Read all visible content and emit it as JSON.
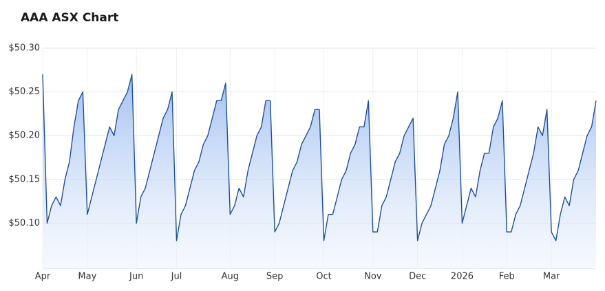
{
  "chart_data": {
    "type": "area",
    "title": "AAA ASX Chart",
    "categories": [
      "Apr",
      null,
      null,
      null,
      null,
      null,
      null,
      null,
      null,
      null,
      "May",
      null,
      null,
      null,
      null,
      null,
      null,
      null,
      null,
      null,
      null,
      "Jun",
      null,
      null,
      null,
      null,
      null,
      null,
      null,
      null,
      "Jul",
      null,
      null,
      null,
      null,
      null,
      null,
      null,
      null,
      null,
      null,
      null,
      "Aug",
      null,
      null,
      null,
      null,
      null,
      null,
      null,
      null,
      null,
      "Sep",
      null,
      null,
      null,
      null,
      null,
      null,
      null,
      null,
      null,
      null,
      "Oct",
      null,
      null,
      null,
      null,
      null,
      null,
      null,
      null,
      null,
      null,
      "Nov",
      null,
      null,
      null,
      null,
      null,
      null,
      null,
      null,
      null,
      "Dec",
      null,
      null,
      null,
      null,
      null,
      null,
      null,
      null,
      null,
      "2026",
      null,
      null,
      null,
      null,
      null,
      null,
      null,
      null,
      null,
      "Feb",
      null,
      null,
      null,
      null,
      null,
      null,
      null,
      null,
      null,
      "Mar",
      null,
      null,
      null,
      null,
      null,
      null,
      null,
      null,
      null,
      null
    ],
    "values": [
      50.27,
      50.1,
      50.12,
      50.13,
      50.12,
      50.15,
      50.17,
      50.21,
      50.24,
      50.25,
      50.11,
      50.13,
      50.15,
      50.17,
      50.19,
      50.21,
      50.2,
      50.23,
      50.24,
      50.25,
      50.27,
      50.1,
      50.13,
      50.14,
      50.16,
      50.18,
      50.2,
      50.22,
      50.23,
      50.25,
      50.08,
      50.11,
      50.12,
      50.14,
      50.16,
      50.17,
      50.19,
      50.2,
      50.22,
      50.24,
      50.24,
      50.26,
      50.11,
      50.12,
      50.14,
      50.13,
      50.16,
      50.18,
      50.2,
      50.21,
      50.24,
      50.24,
      50.09,
      50.1,
      50.12,
      50.14,
      50.16,
      50.17,
      50.19,
      50.2,
      50.21,
      50.23,
      50.23,
      50.08,
      50.11,
      50.11,
      50.13,
      50.15,
      50.16,
      50.18,
      50.19,
      50.21,
      50.21,
      50.24,
      50.09,
      50.09,
      50.12,
      50.13,
      50.15,
      50.17,
      50.18,
      50.2,
      50.21,
      50.22,
      50.08,
      50.1,
      50.11,
      50.12,
      50.14,
      50.16,
      50.19,
      50.2,
      50.22,
      50.25,
      50.1,
      50.12,
      50.14,
      50.13,
      50.16,
      50.18,
      50.18,
      50.21,
      50.22,
      50.24,
      50.09,
      50.09,
      50.11,
      50.12,
      50.14,
      50.16,
      50.18,
      50.21,
      50.2,
      50.23,
      50.09,
      50.08,
      50.11,
      50.13,
      50.12,
      50.15,
      50.16,
      50.18,
      50.2,
      50.21,
      50.24
    ],
    "color": "#1f4e9c",
    "ylim": [
      50.05,
      50.3
    ],
    "yticks": [
      {
        "value": 50.1,
        "label": "$50.10"
      },
      {
        "value": 50.15,
        "label": "$50.15"
      },
      {
        "value": 50.2,
        "label": "$50.20"
      },
      {
        "value": 50.25,
        "label": "$50.25"
      },
      {
        "value": 50.3,
        "label": "$50.30"
      }
    ],
    "grid": true
  }
}
